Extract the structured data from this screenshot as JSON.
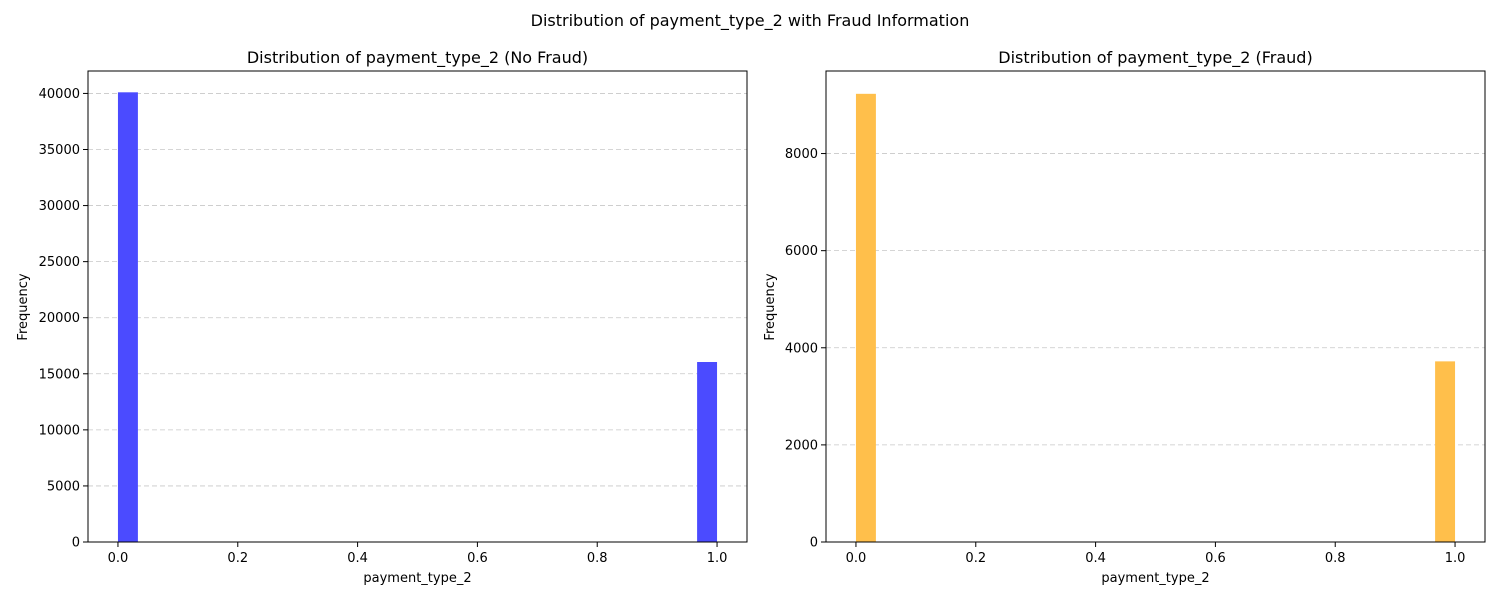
{
  "figure": {
    "suptitle": "Distribution of payment_type_2 with Fraud Information"
  },
  "chart_data": [
    {
      "type": "bar",
      "title": "Distribution of payment_type_2 (No Fraud)",
      "xlabel": "payment_type_2",
      "ylabel": "Frequency",
      "xlim": [
        -0.05,
        1.05
      ],
      "ylim": [
        0,
        42000
      ],
      "xticks": [
        0.0,
        0.2,
        0.4,
        0.6,
        0.8,
        1.0
      ],
      "xtick_labels": [
        "0.0",
        "0.2",
        "0.4",
        "0.6",
        "0.8",
        "1.0"
      ],
      "yticks": [
        0,
        5000,
        10000,
        15000,
        20000,
        25000,
        30000,
        35000,
        40000
      ],
      "ytick_labels": [
        "0",
        "5000",
        "10000",
        "15000",
        "20000",
        "25000",
        "30000",
        "35000",
        "40000"
      ],
      "grid": "y-dashed",
      "color": "#4b4bff",
      "bins": [
        {
          "x0": 0.0,
          "x1": 0.0333,
          "value": 40100
        },
        {
          "x0": 0.9667,
          "x1": 1.0,
          "value": 16050
        }
      ]
    },
    {
      "type": "bar",
      "title": "Distribution of payment_type_2 (Fraud)",
      "xlabel": "payment_type_2",
      "ylabel": "Frequency",
      "xlim": [
        -0.05,
        1.05
      ],
      "ylim": [
        0,
        9700
      ],
      "xticks": [
        0.0,
        0.2,
        0.4,
        0.6,
        0.8,
        1.0
      ],
      "xtick_labels": [
        "0.0",
        "0.2",
        "0.4",
        "0.6",
        "0.8",
        "1.0"
      ],
      "yticks": [
        0,
        2000,
        4000,
        6000,
        8000
      ],
      "ytick_labels": [
        "0",
        "2000",
        "4000",
        "6000",
        "8000"
      ],
      "grid": "y-dashed",
      "color": "#ffbf4b",
      "bins": [
        {
          "x0": 0.0,
          "x1": 0.0333,
          "value": 9230
        },
        {
          "x0": 0.9667,
          "x1": 1.0,
          "value": 3720
        }
      ]
    }
  ]
}
